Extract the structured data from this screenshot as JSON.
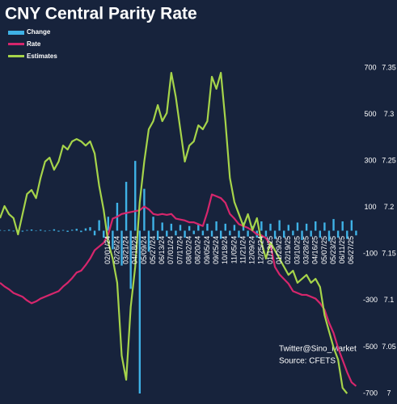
{
  "chart_data": {
    "type": "combo",
    "title": "CNY Central Parity Rate",
    "legend": "upper left",
    "categories": [
      null,
      null,
      null,
      null,
      null,
      null,
      null,
      null,
      null,
      null,
      null,
      null,
      null,
      null,
      null,
      null,
      null,
      null,
      null,
      null,
      null,
      null,
      null,
      null,
      "02/01/24",
      null,
      "02/26/24",
      null,
      "03/21/24",
      null,
      "04/18/24",
      null,
      "05/09/24",
      null,
      "05/27/24",
      null,
      "06/13/24",
      null,
      "07/01/24",
      null,
      "07/17/24",
      null,
      "08/02/24",
      null,
      "08/20/24",
      null,
      "09/05/24",
      null,
      "09/25/24",
      null,
      "10/18/24",
      null,
      "11/05/24",
      null,
      "11/21/24",
      null,
      "12/09/24",
      null,
      "12/25/24",
      null,
      "01/13/25",
      null,
      "01/29/25",
      null,
      "02/19/25",
      null,
      "03/10/25",
      null,
      "03/28/25",
      null,
      "04/16/25",
      null,
      "05/07/25",
      null,
      "05/23/25",
      null,
      "06/11/25",
      null,
      "06/27/25",
      null
    ],
    "series": [
      {
        "name": "Change",
        "type": "bar",
        "color": "#3fb2e6",
        "values": [
          3,
          -2,
          4,
          -3,
          2,
          -4,
          3,
          5,
          -2,
          4,
          -3,
          2,
          6,
          -4,
          3,
          -5,
          4,
          8,
          -6,
          10,
          15,
          -20,
          45,
          -30,
          60,
          -80,
          120,
          -150,
          210,
          -250,
          300,
          -700,
          180,
          -90,
          60,
          -40,
          35,
          -25,
          30,
          -20,
          25,
          -30,
          20,
          -15,
          25,
          -20,
          30,
          -25,
          40,
          -35,
          30,
          -20,
          25,
          -30,
          35,
          -25,
          20,
          -30,
          40,
          -25,
          30,
          -35,
          45,
          -30,
          25,
          -20,
          35,
          -40,
          30,
          -25,
          40,
          -30,
          35,
          -45,
          50,
          -30,
          40,
          -35,
          45,
          -20
        ]
      },
      {
        "name": "Rate",
        "type": "line",
        "axis": "y2",
        "color": "#d6266c",
        "values": [
          7.119,
          7.115,
          7.112,
          7.108,
          7.106,
          7.104,
          7.1,
          7.097,
          7.099,
          7.102,
          7.104,
          7.106,
          7.108,
          7.11,
          7.115,
          7.119,
          7.124,
          7.13,
          7.132,
          7.138,
          7.145,
          7.154,
          7.158,
          7.162,
          7.171,
          7.188,
          7.19,
          7.193,
          7.194,
          7.195,
          7.196,
          7.197,
          7.201,
          7.198,
          7.193,
          7.192,
          7.193,
          7.192,
          7.193,
          7.188,
          7.187,
          7.186,
          7.184,
          7.184,
          7.182,
          7.18,
          7.195,
          7.214,
          7.212,
          7.21,
          7.205,
          7.193,
          7.188,
          7.182,
          7.18,
          7.178,
          7.175,
          7.171,
          7.17,
          7.167,
          7.16,
          7.136,
          7.128,
          7.123,
          7.118,
          7.11,
          7.108,
          7.106,
          7.106,
          7.104,
          7.102,
          7.097,
          7.09,
          7.076,
          7.065,
          7.049,
          7.036,
          7.023,
          7.012,
          7.008
        ]
      },
      {
        "name": "Estimates",
        "type": "line",
        "color": "#a6d44a",
        "values": [
          54,
          106,
          71,
          54,
          -16,
          71,
          158,
          175,
          140,
          227,
          297,
          314,
          262,
          297,
          366,
          349,
          384,
          394,
          384,
          366,
          384,
          332,
          193,
          89,
          -50,
          -120,
          -224,
          -537,
          -641,
          -328,
          -155,
          123,
          297,
          436,
          471,
          540,
          471,
          506,
          679,
          575,
          436,
          297,
          366,
          384,
          453,
          436,
          471,
          662,
          610,
          679,
          471,
          227,
          123,
          71,
          19,
          71,
          2,
          54,
          -50,
          -120,
          -50,
          -85,
          -120,
          -155,
          -190,
          -172,
          -224,
          -207,
          -190,
          -224,
          -207,
          -242,
          -363,
          -433,
          -502,
          -554,
          -676,
          -700,
          null,
          null
        ]
      }
    ],
    "ylim": [
      -700,
      700
    ],
    "yticks": [
      700,
      500,
      300,
      100,
      -100,
      -300,
      -500,
      -700
    ],
    "y2lim": [
      7,
      7.35
    ],
    "y2ticks": [
      7.35,
      7.3,
      7.25,
      7.2,
      7.15,
      7.1,
      7.05,
      7
    ],
    "annotations": [
      "Twitter@Sino_Market",
      "Source: CFETS"
    ]
  }
}
